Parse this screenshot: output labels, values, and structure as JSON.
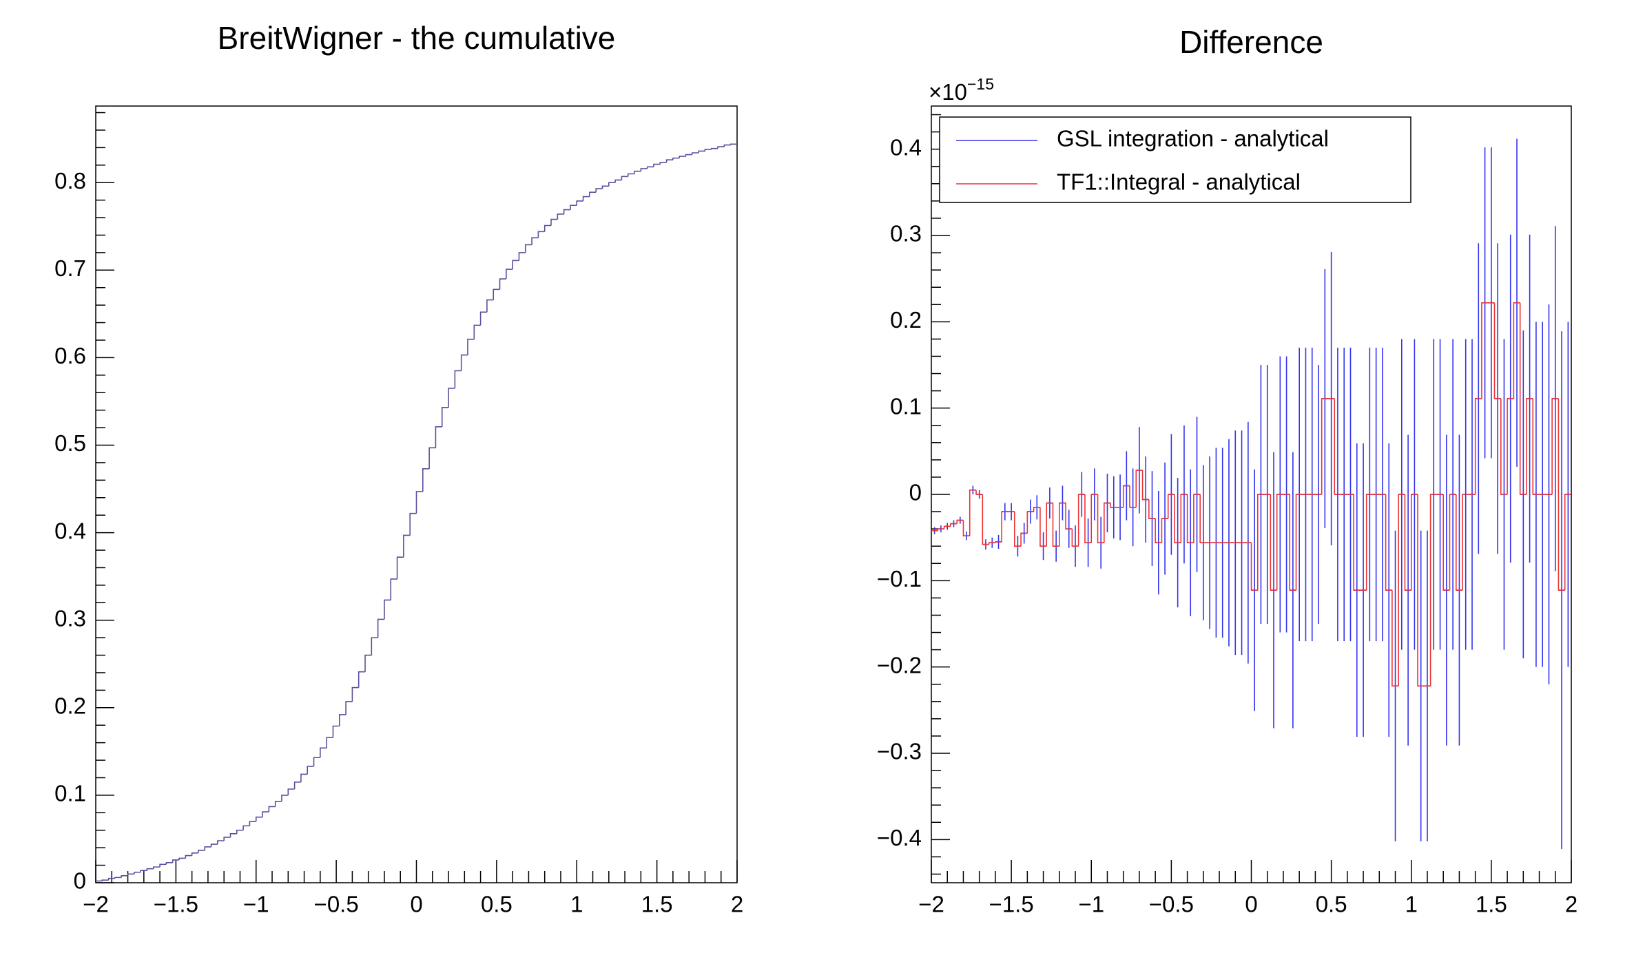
{
  "chart_data": [
    {
      "type": "histogram",
      "title": "BreitWigner - the cumulative",
      "bins": [
        -2,
        -1.96,
        -1.92,
        -1.88,
        -1.84,
        -1.8,
        -1.76,
        -1.72,
        -1.68,
        -1.64,
        -1.6,
        -1.56,
        -1.52,
        -1.48,
        -1.44,
        -1.4,
        -1.36,
        -1.32,
        -1.28,
        -1.24,
        -1.2,
        -1.16,
        -1.12,
        -1.08,
        -1.04,
        -1,
        -0.96,
        -0.92,
        -0.88,
        -0.84,
        -0.8,
        -0.76,
        -0.72,
        -0.68,
        -0.64,
        -0.6,
        -0.56,
        -0.52,
        -0.48,
        -0.44,
        -0.4,
        -0.36,
        -0.32,
        -0.28,
        -0.24,
        -0.2,
        -0.16,
        -0.12,
        -0.08,
        -0.04,
        0,
        0.04,
        0.08,
        0.12,
        0.16,
        0.2,
        0.24,
        0.28,
        0.32,
        0.36,
        0.4,
        0.44,
        0.48,
        0.52,
        0.56,
        0.6,
        0.64,
        0.68,
        0.72,
        0.76,
        0.8,
        0.84,
        0.88,
        0.92,
        0.96,
        1,
        1.04,
        1.08,
        1.12,
        1.16,
        1.2,
        1.24,
        1.28,
        1.32,
        1.36,
        1.4,
        1.44,
        1.48,
        1.52,
        1.56,
        1.6,
        1.64,
        1.68,
        1.72,
        1.76,
        1.8,
        1.84,
        1.88,
        1.92,
        1.96,
        2
      ],
      "series": [
        {
          "color": "#5e4e9c",
          "style": "step",
          "values": [
            0.002,
            0.003,
            0.005,
            0.006,
            0.008,
            0.01,
            0.012,
            0.014,
            0.016,
            0.018,
            0.021,
            0.023,
            0.026,
            0.028,
            0.031,
            0.034,
            0.037,
            0.041,
            0.044,
            0.048,
            0.052,
            0.056,
            0.06,
            0.065,
            0.07,
            0.075,
            0.081,
            0.087,
            0.093,
            0.1,
            0.107,
            0.115,
            0.124,
            0.133,
            0.143,
            0.154,
            0.166,
            0.179,
            0.192,
            0.207,
            0.223,
            0.241,
            0.26,
            0.28,
            0.301,
            0.323,
            0.347,
            0.372,
            0.397,
            0.422,
            0.447,
            0.473,
            0.497,
            0.521,
            0.543,
            0.565,
            0.585,
            0.603,
            0.621,
            0.637,
            0.652,
            0.666,
            0.678,
            0.69,
            0.701,
            0.711,
            0.72,
            0.729,
            0.737,
            0.744,
            0.751,
            0.758,
            0.764,
            0.769,
            0.774,
            0.779,
            0.784,
            0.789,
            0.793,
            0.796,
            0.8,
            0.803,
            0.807,
            0.81,
            0.813,
            0.816,
            0.818,
            0.821,
            0.823,
            0.826,
            0.828,
            0.83,
            0.832,
            0.834,
            0.836,
            0.838,
            0.839,
            0.841,
            0.843,
            0.844
          ]
        }
      ],
      "xlim": [
        -2,
        2
      ],
      "xticks": [
        {
          "value": -2,
          "label": "−2"
        },
        {
          "value": -1.5,
          "label": "−1.5"
        },
        {
          "value": -1,
          "label": "−1"
        },
        {
          "value": -0.5,
          "label": "−0.5"
        },
        0,
        0.5,
        1,
        1.5,
        2
      ],
      "ylim": [
        0,
        0.8875
      ],
      "yticks": [
        0,
        0.1,
        0.2,
        0.3,
        0.4,
        0.5,
        0.6,
        0.7,
        0.8
      ]
    },
    {
      "type": "histogram",
      "title": "Difference",
      "y_multiplier": {
        "base": "×10",
        "exponent": "−15"
      },
      "bins": [
        -2,
        -1.96,
        -1.92,
        -1.88,
        -1.84,
        -1.8,
        -1.76,
        -1.72,
        -1.68,
        -1.64,
        -1.6,
        -1.56,
        -1.52,
        -1.48,
        -1.44,
        -1.4,
        -1.36,
        -1.32,
        -1.28,
        -1.24,
        -1.2,
        -1.16,
        -1.12,
        -1.08,
        -1.04,
        -1,
        -0.96,
        -0.92,
        -0.88,
        -0.84,
        -0.8,
        -0.76,
        -0.72,
        -0.68,
        -0.64,
        -0.6,
        -0.56,
        -0.52,
        -0.48,
        -0.44,
        -0.4,
        -0.36,
        -0.32,
        -0.28,
        -0.24,
        -0.2,
        -0.16,
        -0.12,
        -0.08,
        -0.04,
        0,
        0.04,
        0.08,
        0.12,
        0.16,
        0.2,
        0.24,
        0.28,
        0.32,
        0.36,
        0.4,
        0.44,
        0.48,
        0.52,
        0.56,
        0.6,
        0.64,
        0.68,
        0.72,
        0.76,
        0.8,
        0.84,
        0.88,
        0.92,
        0.96,
        1,
        1.04,
        1.08,
        1.12,
        1.16,
        1.2,
        1.24,
        1.28,
        1.32,
        1.36,
        1.4,
        1.44,
        1.48,
        1.52,
        1.56,
        1.6,
        1.64,
        1.68,
        1.72,
        1.76,
        1.8,
        1.84,
        1.88,
        1.92,
        1.96,
        2
      ],
      "series": [
        {
          "name": "GSL integration - analytical",
          "color": "#3333ee",
          "style": "errorbar",
          "values": [
            -0.042,
            -0.04,
            -0.037,
            -0.034,
            -0.03,
            -0.048,
            0.005,
            0,
            -0.058,
            -0.056,
            -0.055,
            -0.02,
            -0.02,
            -0.06,
            -0.045,
            -0.02,
            -0.015,
            -0.06,
            -0.01,
            -0.06,
            -0.01,
            -0.04,
            -0.06,
            0,
            -0.056,
            0,
            -0.056,
            -0.01,
            -0.015,
            -0.015,
            0.01,
            -0.015,
            0.028,
            -0.006,
            -0.028,
            -0.056,
            -0.028,
            0,
            -0.056,
            0,
            -0.056,
            0,
            -0.056,
            -0.056,
            -0.056,
            -0.056,
            -0.056,
            -0.056,
            -0.056,
            -0.056,
            -0.111,
            0,
            0,
            -0.111,
            0,
            0,
            -0.111,
            0,
            0,
            0,
            0,
            0.111,
            0.111,
            0,
            0,
            0,
            -0.111,
            -0.111,
            0,
            0,
            0,
            -0.111,
            -0.222,
            0,
            -0.111,
            0,
            -0.222,
            -0.222,
            0,
            0,
            -0.111,
            0,
            -0.111,
            0,
            0,
            0.111,
            0.222,
            0.222,
            0.111,
            0,
            0.111,
            0.222,
            0,
            0.111,
            0,
            0,
            0,
            0.111,
            -0.111,
            0
          ],
          "errors": [
            0.004,
            0.004,
            0.004,
            0.004,
            0.004,
            0.005,
            0.005,
            0.005,
            0.006,
            0.006,
            0.008,
            0.01,
            0.01,
            0.012,
            0.012,
            0.014,
            0.014,
            0.016,
            0.018,
            0.018,
            0.02,
            0.022,
            0.024,
            0.026,
            0.028,
            0.03,
            0.03,
            0.034,
            0.036,
            0.038,
            0.04,
            0.045,
            0.05,
            0.05,
            0.055,
            0.06,
            0.065,
            0.07,
            0.075,
            0.08,
            0.085,
            0.09,
            0.09,
            0.1,
            0.11,
            0.11,
            0.12,
            0.13,
            0.13,
            0.14,
            0.14,
            0.15,
            0.15,
            0.16,
            0.16,
            0.16,
            0.16,
            0.17,
            0.17,
            0.17,
            0.15,
            0.15,
            0.17,
            0.17,
            0.17,
            0.17,
            0.17,
            0.17,
            0.17,
            0.17,
            0.17,
            0.17,
            0.18,
            0.18,
            0.18,
            0.18,
            0.18,
            0.18,
            0.18,
            0.18,
            0.18,
            0.18,
            0.18,
            0.18,
            0.18,
            0.18,
            0.18,
            0.18,
            0.18,
            0.18,
            0.19,
            0.19,
            0.19,
            0.19,
            0.2,
            0.2,
            0.22,
            0.2,
            0.3,
            0.2
          ]
        },
        {
          "name": "TF1::Integral  - analytical",
          "color": "#ee3333",
          "style": "step",
          "values": [
            -0.042,
            -0.04,
            -0.037,
            -0.034,
            -0.03,
            -0.048,
            0.005,
            0,
            -0.058,
            -0.056,
            -0.055,
            -0.02,
            -0.02,
            -0.06,
            -0.045,
            -0.02,
            -0.015,
            -0.06,
            -0.01,
            -0.06,
            -0.01,
            -0.04,
            -0.06,
            0,
            -0.056,
            0,
            -0.056,
            -0.01,
            -0.015,
            -0.015,
            0.01,
            -0.015,
            0.028,
            -0.006,
            -0.028,
            -0.056,
            -0.028,
            0,
            -0.056,
            0,
            -0.056,
            0,
            -0.056,
            -0.056,
            -0.056,
            -0.056,
            -0.056,
            -0.056,
            -0.056,
            -0.056,
            -0.111,
            0,
            0,
            -0.111,
            0,
            0,
            -0.111,
            0,
            0,
            0,
            0,
            0.111,
            0.111,
            0,
            0,
            0,
            -0.111,
            -0.111,
            0,
            0,
            0,
            -0.111,
            -0.222,
            0,
            -0.111,
            0,
            -0.222,
            -0.222,
            0,
            0,
            -0.111,
            0,
            -0.111,
            0,
            0,
            0.111,
            0.222,
            0.222,
            0.111,
            0,
            0.111,
            0.222,
            0,
            0.111,
            0,
            0,
            0,
            0.111,
            -0.111,
            0
          ]
        }
      ],
      "legend": "top-left",
      "xlim": [
        -2,
        2
      ],
      "xticks": [
        {
          "value": -2,
          "label": "−2"
        },
        {
          "value": -1.5,
          "label": "−1.5"
        },
        {
          "value": -1,
          "label": "−1"
        },
        {
          "value": -0.5,
          "label": "−0.5"
        },
        0,
        0.5,
        1,
        1.5,
        2
      ],
      "ylim": [
        -0.45,
        0.45
      ],
      "yticks": [
        {
          "value": -0.4,
          "label": "−0.4"
        },
        {
          "value": -0.3,
          "label": "−0.3"
        },
        {
          "value": -0.2,
          "label": "−0.2"
        },
        {
          "value": -0.1,
          "label": "−0.1"
        },
        0,
        0.1,
        0.2,
        0.3,
        0.4
      ]
    }
  ]
}
